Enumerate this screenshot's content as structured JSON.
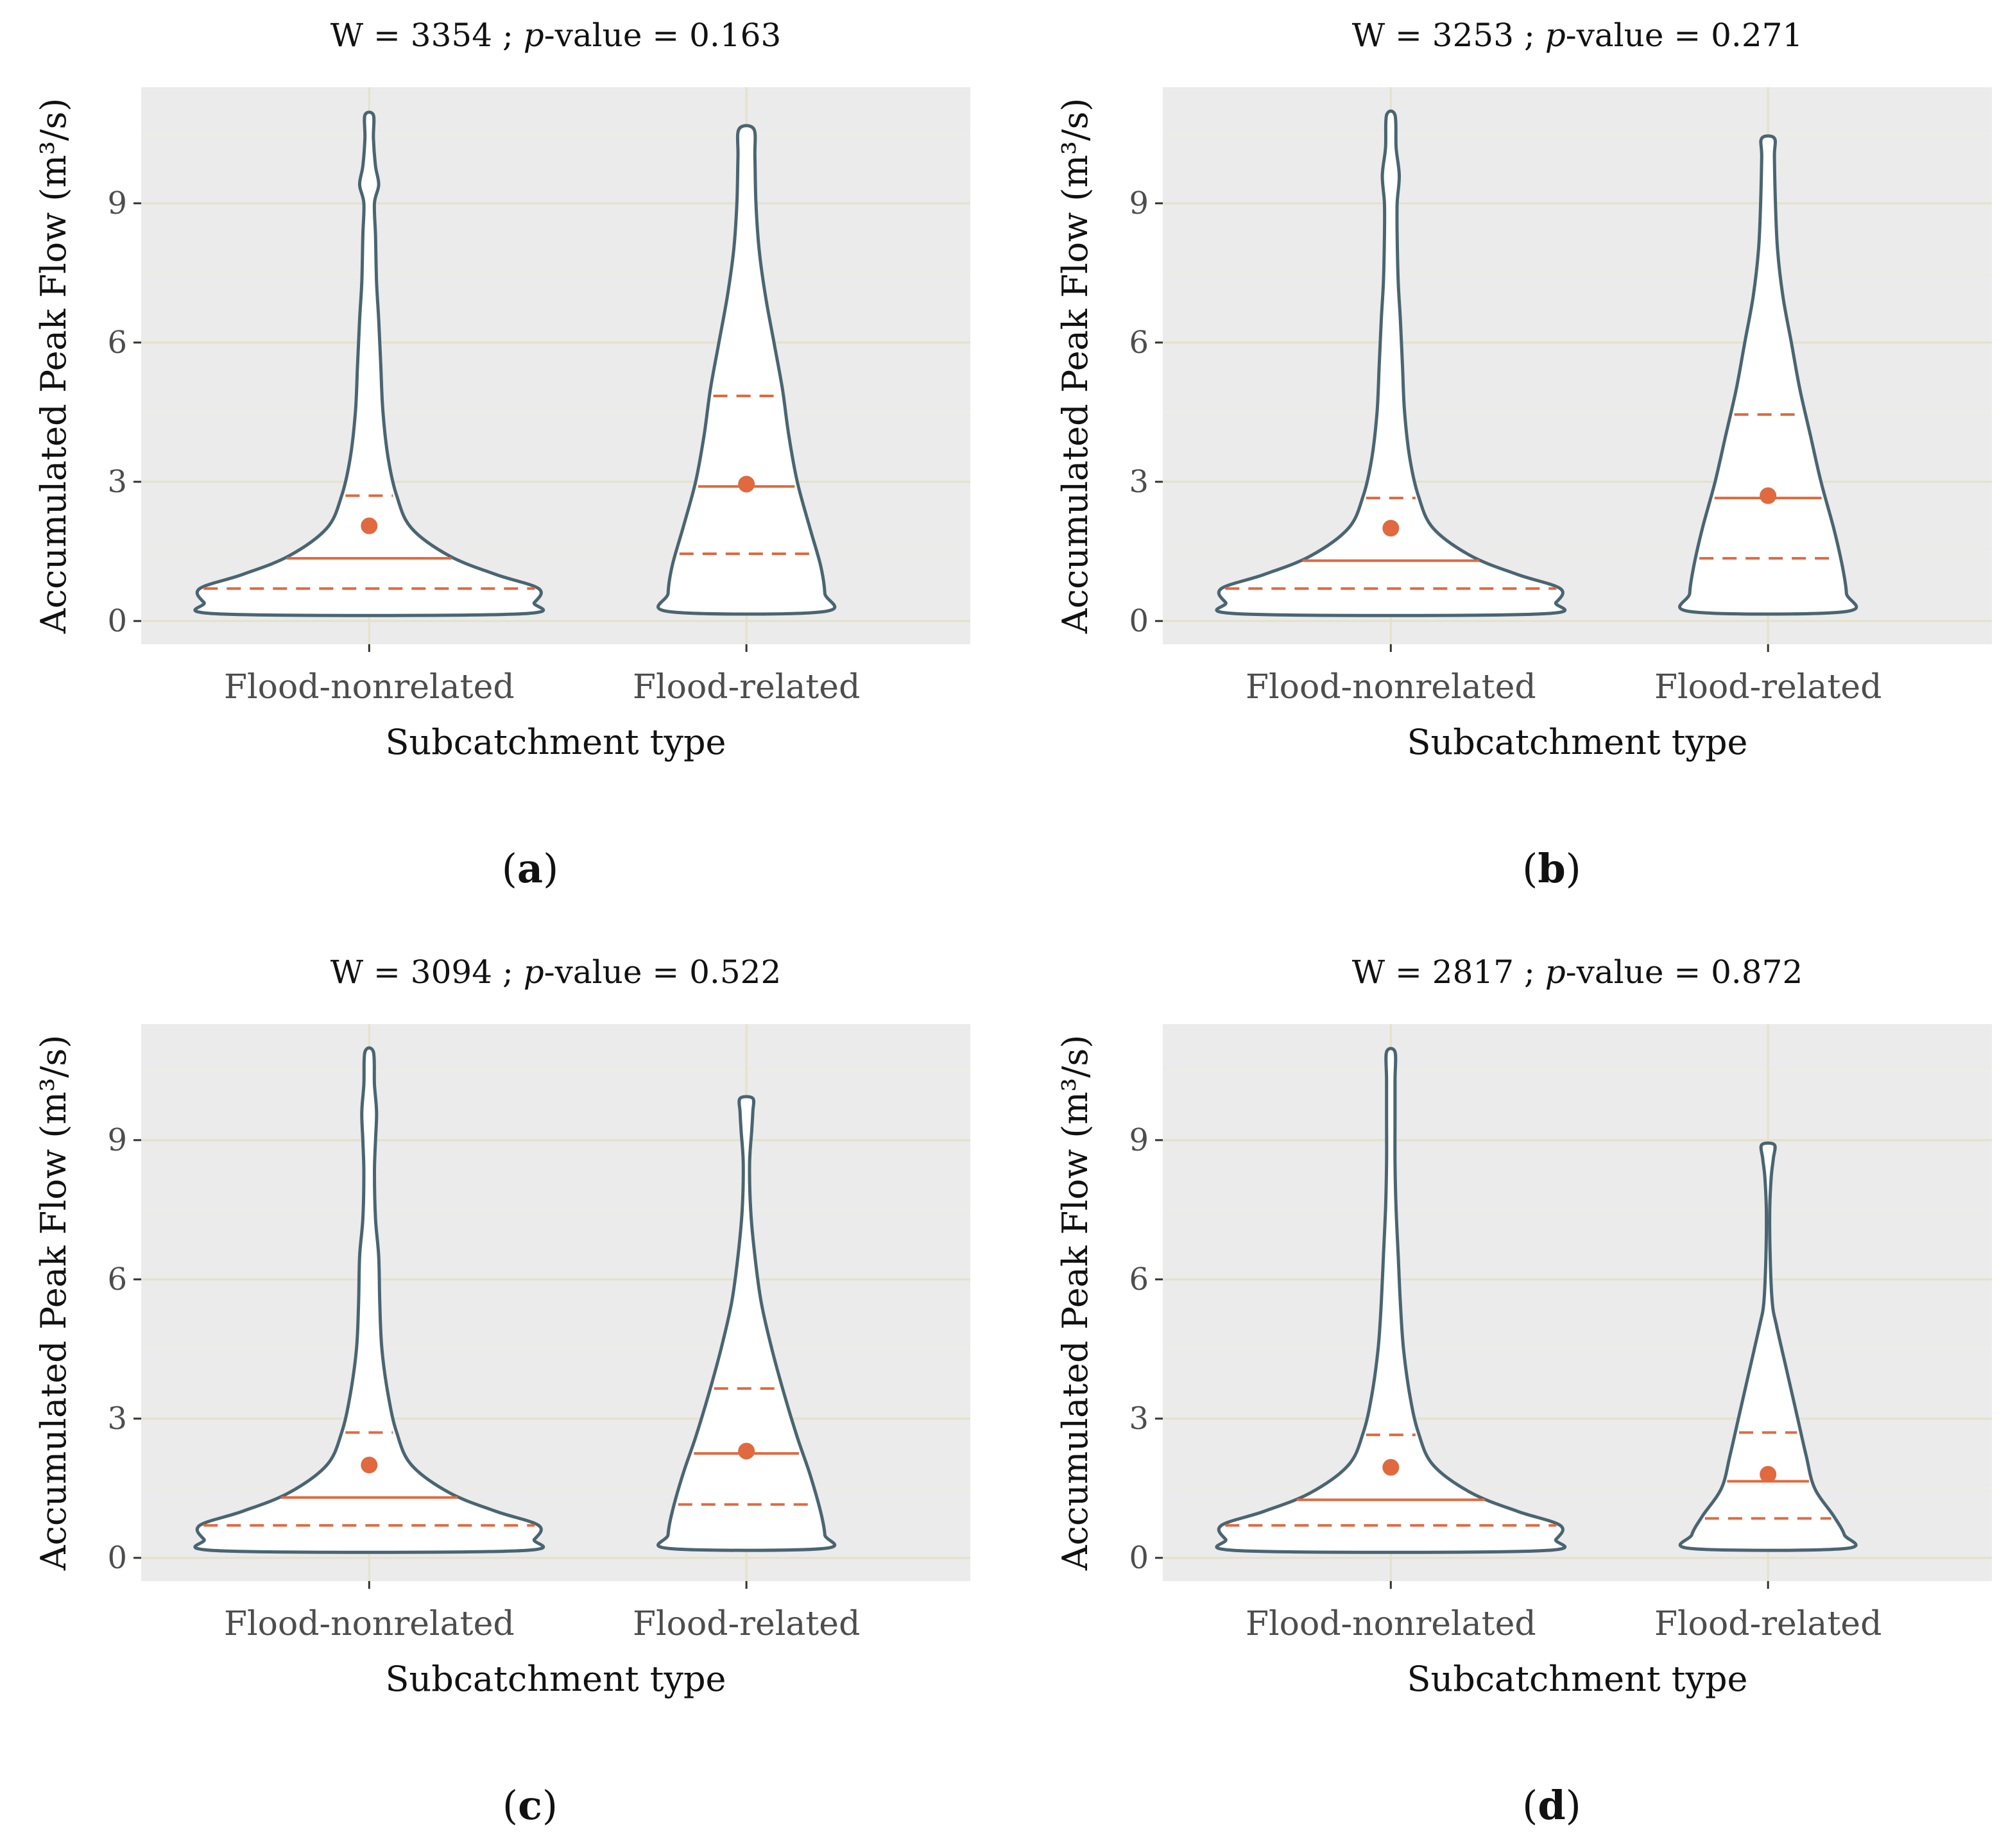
{
  "chart_data": [
    {
      "type": "violin",
      "panel_label": "(a)",
      "label_letter": "a",
      "title_prefix": "W = 3354 ; ",
      "title_p": "p",
      "title_suffix": "-value = 0.163",
      "xlabel": "Subcatchment type",
      "ylabel": "Accumulated Peak Flow (m³/s)",
      "ylim": [
        -0.5,
        11.5
      ],
      "yticks": [
        "0",
        "3",
        "6",
        "9"
      ],
      "categories": [
        "Flood-nonrelated",
        "Flood-related"
      ],
      "groups": [
        {
          "min": 0.15,
          "max": 10.9,
          "q1": 0.7,
          "median": 1.35,
          "q3": 2.7,
          "mean": 2.05,
          "shape": [
            [
              0.15,
              0.69
            ],
            [
              0.4,
              0.78
            ],
            [
              0.7,
              0.8
            ],
            [
              1.0,
              0.6
            ],
            [
              1.4,
              0.38
            ],
            [
              2.0,
              0.2
            ],
            [
              2.7,
              0.13
            ],
            [
              3.5,
              0.09
            ],
            [
              4.5,
              0.065
            ],
            [
              5.5,
              0.055
            ],
            [
              6.5,
              0.045
            ],
            [
              7.3,
              0.035
            ],
            [
              8.3,
              0.03
            ],
            [
              9.0,
              0.025
            ],
            [
              9.4,
              0.045
            ],
            [
              9.8,
              0.03
            ],
            [
              10.4,
              0.02
            ],
            [
              10.9,
              0.02
            ]
          ]
        },
        {
          "min": 0.2,
          "max": 10.6,
          "q1": 1.45,
          "median": 2.9,
          "q3": 4.85,
          "mean": 2.95,
          "shape": [
            [
              0.2,
              0.36
            ],
            [
              0.6,
              0.37
            ],
            [
              1.2,
              0.35
            ],
            [
              2.0,
              0.3
            ],
            [
              3.0,
              0.24
            ],
            [
              4.0,
              0.2
            ],
            [
              5.0,
              0.17
            ],
            [
              6.0,
              0.13
            ],
            [
              7.0,
              0.09
            ],
            [
              8.0,
              0.06
            ],
            [
              9.0,
              0.045
            ],
            [
              10.0,
              0.04
            ],
            [
              10.6,
              0.035
            ]
          ]
        }
      ]
    },
    {
      "type": "violin",
      "panel_label": "(b)",
      "label_letter": "b",
      "title_prefix": "W = 3253 ; ",
      "title_p": "p",
      "title_suffix": "-value = 0.271",
      "xlabel": "Subcatchment type",
      "ylabel": "Accumulated Peak Flow (m³/s)",
      "ylim": [
        -0.5,
        11.5
      ],
      "yticks": [
        "0",
        "3",
        "6",
        "9"
      ],
      "categories": [
        "Flood-nonrelated",
        "Flood-related"
      ],
      "groups": [
        {
          "min": 0.15,
          "max": 10.9,
          "q1": 0.7,
          "median": 1.3,
          "q3": 2.65,
          "mean": 2.0,
          "shape": [
            [
              0.15,
              0.69
            ],
            [
              0.4,
              0.78
            ],
            [
              0.7,
              0.8
            ],
            [
              1.0,
              0.6
            ],
            [
              1.4,
              0.38
            ],
            [
              2.0,
              0.2
            ],
            [
              2.7,
              0.13
            ],
            [
              3.5,
              0.09
            ],
            [
              4.5,
              0.065
            ],
            [
              5.5,
              0.055
            ],
            [
              6.5,
              0.045
            ],
            [
              7.3,
              0.035
            ],
            [
              8.3,
              0.03
            ],
            [
              9.0,
              0.03
            ],
            [
              9.6,
              0.04
            ],
            [
              10.2,
              0.025
            ],
            [
              10.9,
              0.02
            ]
          ]
        },
        {
          "min": 0.2,
          "max": 10.4,
          "q1": 1.35,
          "median": 2.65,
          "q3": 4.45,
          "mean": 2.7,
          "shape": [
            [
              0.2,
              0.36
            ],
            [
              0.6,
              0.37
            ],
            [
              1.2,
              0.35
            ],
            [
              2.0,
              0.31
            ],
            [
              3.0,
              0.25
            ],
            [
              4.0,
              0.2
            ],
            [
              5.0,
              0.15
            ],
            [
              6.0,
              0.11
            ],
            [
              7.0,
              0.07
            ],
            [
              8.0,
              0.045
            ],
            [
              9.0,
              0.035
            ],
            [
              10.0,
              0.03
            ],
            [
              10.4,
              0.03
            ]
          ]
        }
      ]
    },
    {
      "type": "violin",
      "panel_label": "(c)",
      "label_letter": "c",
      "title_prefix": "W = 3094 ; ",
      "title_p": "p",
      "title_suffix": "-value = 0.522",
      "xlabel": "Subcatchment type",
      "ylabel": "Accumulated Peak Flow (m³/s)",
      "ylim": [
        -0.5,
        11.5
      ],
      "yticks": [
        "0",
        "3",
        "6",
        "9"
      ],
      "categories": [
        "Flood-nonrelated",
        "Flood-related"
      ],
      "groups": [
        {
          "min": 0.15,
          "max": 10.9,
          "q1": 0.7,
          "median": 1.3,
          "q3": 2.7,
          "mean": 2.0,
          "shape": [
            [
              0.15,
              0.69
            ],
            [
              0.4,
              0.78
            ],
            [
              0.7,
              0.8
            ],
            [
              1.0,
              0.6
            ],
            [
              1.4,
              0.38
            ],
            [
              2.0,
              0.2
            ],
            [
              2.7,
              0.13
            ],
            [
              3.5,
              0.09
            ],
            [
              4.5,
              0.06
            ],
            [
              5.5,
              0.05
            ],
            [
              6.5,
              0.045
            ],
            [
              7.3,
              0.03
            ],
            [
              8.3,
              0.025
            ],
            [
              9.0,
              0.03
            ],
            [
              9.6,
              0.035
            ],
            [
              10.2,
              0.025
            ],
            [
              10.9,
              0.02
            ]
          ]
        },
        {
          "min": 0.2,
          "max": 9.9,
          "q1": 1.15,
          "median": 2.25,
          "q3": 3.65,
          "mean": 2.3,
          "shape": [
            [
              0.2,
              0.36
            ],
            [
              0.5,
              0.37
            ],
            [
              1.0,
              0.35
            ],
            [
              1.8,
              0.3
            ],
            [
              2.6,
              0.24
            ],
            [
              3.5,
              0.18
            ],
            [
              4.5,
              0.12
            ],
            [
              5.5,
              0.07
            ],
            [
              6.5,
              0.04
            ],
            [
              7.5,
              0.02
            ],
            [
              8.5,
              0.015
            ],
            [
              9.2,
              0.025
            ],
            [
              9.6,
              0.03
            ],
            [
              9.9,
              0.03
            ]
          ]
        }
      ]
    },
    {
      "type": "violin",
      "panel_label": "(d)",
      "label_letter": "d",
      "title_prefix": "W = 2817 ; ",
      "title_p": "p",
      "title_suffix": "-value = 0.872",
      "xlabel": "Subcatchment type",
      "ylabel": "Accumulated Peak Flow (m³/s)",
      "ylim": [
        -0.5,
        11.5
      ],
      "yticks": [
        "0",
        "3",
        "6",
        "9"
      ],
      "categories": [
        "Flood-nonrelated",
        "Flood-related"
      ],
      "groups": [
        {
          "min": 0.15,
          "max": 10.9,
          "q1": 0.7,
          "median": 1.25,
          "q3": 2.65,
          "mean": 1.95,
          "shape": [
            [
              0.15,
              0.69
            ],
            [
              0.4,
              0.78
            ],
            [
              0.7,
              0.8
            ],
            [
              1.0,
              0.6
            ],
            [
              1.4,
              0.38
            ],
            [
              2.0,
              0.2
            ],
            [
              2.7,
              0.13
            ],
            [
              3.5,
              0.09
            ],
            [
              4.5,
              0.06
            ],
            [
              5.5,
              0.045
            ],
            [
              6.5,
              0.035
            ],
            [
              7.5,
              0.025
            ],
            [
              8.5,
              0.02
            ],
            [
              9.5,
              0.02
            ],
            [
              10.3,
              0.02
            ],
            [
              10.9,
              0.02
            ]
          ]
        },
        {
          "min": 0.2,
          "max": 8.9,
          "q1": 0.85,
          "median": 1.65,
          "q3": 2.7,
          "mean": 1.8,
          "shape": [
            [
              0.2,
              0.36
            ],
            [
              0.5,
              0.36
            ],
            [
              0.9,
              0.31
            ],
            [
              1.5,
              0.22
            ],
            [
              2.2,
              0.18
            ],
            [
              3.0,
              0.14
            ],
            [
              4.0,
              0.09
            ],
            [
              5.0,
              0.04
            ],
            [
              5.5,
              0.02
            ],
            [
              6.5,
              0.01
            ],
            [
              7.5,
              0.008
            ],
            [
              8.2,
              0.015
            ],
            [
              8.6,
              0.025
            ],
            [
              8.9,
              0.03
            ]
          ]
        }
      ]
    }
  ],
  "colors": {
    "panel_bg": "#ebebeb",
    "grid_major": "#e4e1c9",
    "grid_minor": "#efeddf",
    "violin_outline": "#4a6571",
    "violin_fill": "#ffffff",
    "stat": "#e0693f",
    "tick_text": "#4d4d4d"
  }
}
